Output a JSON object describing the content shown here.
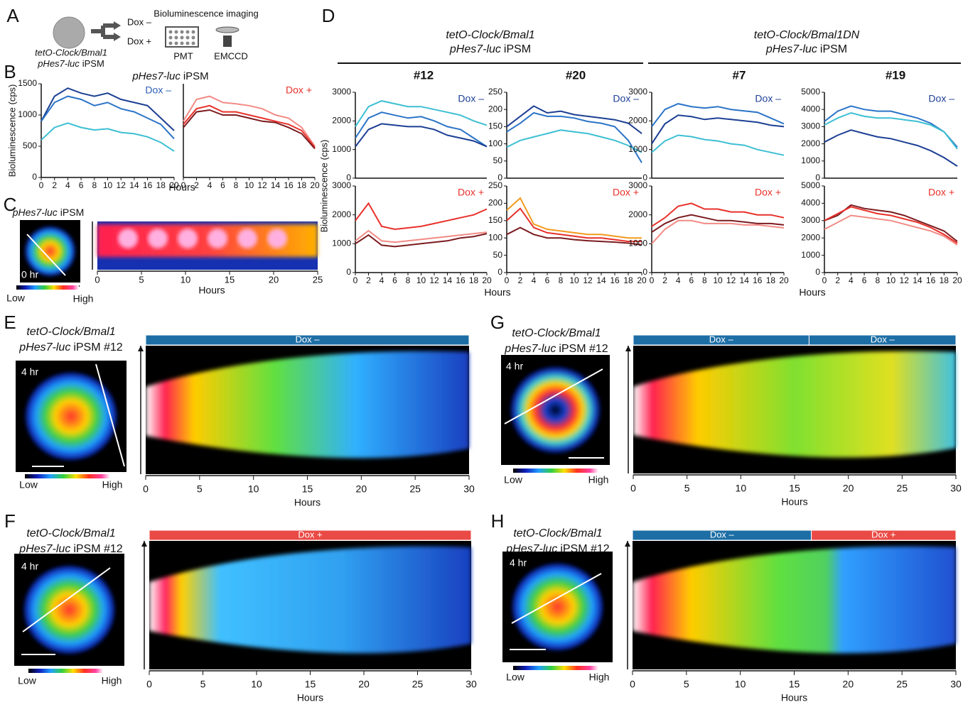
{
  "panel_labels": [
    "A",
    "B",
    "C",
    "D",
    "E",
    "F",
    "G",
    "H"
  ],
  "panel_a": {
    "sample": "tetO-Clock/Bmal1",
    "sample2": {
      "italic": "pHes7-luc",
      "plain": "iPSM"
    },
    "dox_minus": "Dox –",
    "dox_plus": "Dox +",
    "method": "Bioluminescence imaging",
    "pmt": "PMT",
    "emccd": "EMCCD"
  },
  "panel_b": {
    "title": {
      "italic": "pHes7-luc",
      "plain": "iPSM"
    },
    "ylabel": "Bioluminescence (cps)",
    "xlabel": "Hours"
  },
  "panel_c": {
    "title": {
      "italic": "pHes7-luc",
      "plain": "iPSM"
    },
    "time": "0 hr",
    "low": "Low",
    "high": "High",
    "xlim": [
      0,
      25
    ],
    "xticks": [
      0,
      5,
      10,
      15,
      20,
      25
    ],
    "xlabel": "Hours"
  },
  "panel_d": {
    "ylabel": "Bioluminescence (cps)",
    "groups": [
      {
        "line1": "tetO-Clock/Bmal1",
        "line2": {
          "italic": "pHes7-luc",
          "plain": "iPSM"
        },
        "clones": [
          "#12",
          "#20"
        ],
        "xlabel": "Hours"
      },
      {
        "line1": "tetO-Clock/Bmal1DN",
        "line2": {
          "italic": "pHes7-luc",
          "plain": "iPSM"
        },
        "clones": [
          "#7",
          "#19"
        ],
        "xlabel": "Hours"
      }
    ]
  },
  "panel_e": {
    "sample": "tetO-Clock/Bmal1",
    "sample2": {
      "italic": "pHes7-luc",
      "plain": "iPSM #12"
    },
    "time": "4 hr",
    "low": "Low",
    "high": "High",
    "bars": [
      {
        "text": "Dox –",
        "color": "#1d6ea5"
      }
    ],
    "xlim": [
      0,
      30
    ],
    "xticks": [
      0,
      5,
      10,
      15,
      20,
      25,
      30
    ],
    "xlabel": "Hours"
  },
  "panel_f": {
    "sample": "tetO-Clock/Bmal1",
    "sample2": {
      "italic": "pHes7-luc",
      "plain": "iPSM #12"
    },
    "time": "4 hr",
    "low": "Low",
    "high": "High",
    "bars": [
      {
        "text": "Dox +",
        "color": "#ea4a45"
      }
    ],
    "xlim": [
      0,
      30
    ],
    "xticks": [
      0,
      5,
      10,
      15,
      20,
      25,
      30
    ],
    "xlabel": "Hours"
  },
  "panel_g": {
    "sample": "tetO-Clock/Bmal1",
    "sample2": {
      "italic": "pHes7-luc",
      "plain": "iPSM #12"
    },
    "time": "4 hr",
    "low": "Low",
    "high": "High",
    "bars": [
      {
        "text": "Dox –",
        "color": "#1d6ea5"
      },
      {
        "text": "Dox –",
        "color": "#1d6ea5"
      }
    ],
    "xlim": [
      0,
      30
    ],
    "xticks": [
      0,
      5,
      10,
      15,
      20,
      25,
      30
    ],
    "xlabel": "Hours"
  },
  "panel_h": {
    "sample": "tetO-Clock/Bmal1",
    "sample2": {
      "italic": "pHes7-luc",
      "plain": "iPSM #12"
    },
    "time": "4 hr",
    "low": "Low",
    "high": "High",
    "bars": [
      {
        "text": "Dox –",
        "color": "#1d6ea5"
      },
      {
        "text": "Dox +",
        "color": "#ea4a45"
      }
    ],
    "xlim": [
      0,
      30
    ],
    "xticks": [
      0,
      5,
      10,
      15,
      20,
      25,
      30
    ],
    "xlabel": "Hours"
  },
  "chart_data": [
    {
      "type": "line",
      "x": [
        0,
        2,
        4,
        6,
        8,
        10,
        12,
        14,
        16,
        18,
        20
      ],
      "xlim": [
        0,
        20
      ],
      "xticks": [
        0,
        2,
        4,
        6,
        8,
        10,
        12,
        14,
        16,
        18,
        20
      ],
      "ylim": [
        0,
        1500
      ],
      "yticks": [
        0,
        500,
        1000,
        1500
      ],
      "annotation": {
        "text": "Dox –",
        "color": "#2b5fb4"
      },
      "series": [
        {
          "color": "#1c3f94",
          "values": [
            900,
            1300,
            1430,
            1350,
            1300,
            1350,
            1250,
            1200,
            1150,
            950,
            750
          ]
        },
        {
          "color": "#2b74c7",
          "values": [
            900,
            1200,
            1300,
            1250,
            1150,
            1200,
            1100,
            1050,
            950,
            850,
            620
          ]
        },
        {
          "color": "#3dbfd3",
          "values": [
            600,
            800,
            870,
            800,
            760,
            780,
            720,
            700,
            650,
            560,
            420
          ]
        }
      ]
    },
    {
      "type": "line",
      "x": [
        0,
        2,
        4,
        6,
        8,
        10,
        12,
        14,
        16,
        18,
        20
      ],
      "xlim": [
        0,
        20
      ],
      "xticks": [
        0,
        2,
        4,
        6,
        8,
        10,
        12,
        14,
        16,
        18,
        20
      ],
      "ylim": [
        0,
        1500
      ],
      "annotation": {
        "text": "Dox +",
        "color": "#e8302a"
      },
      "series": [
        {
          "color": "#f28b85",
          "values": [
            900,
            1250,
            1300,
            1200,
            1180,
            1150,
            1100,
            1000,
            950,
            800,
            500
          ]
        },
        {
          "color": "#e8302a",
          "values": [
            850,
            1100,
            1150,
            1050,
            1050,
            1000,
            950,
            900,
            850,
            750,
            480
          ]
        },
        {
          "color": "#7b1b1f",
          "values": [
            800,
            1050,
            1080,
            1000,
            1000,
            950,
            900,
            880,
            800,
            700,
            460
          ]
        }
      ]
    },
    {
      "type": "line",
      "x": [
        0,
        2,
        4,
        6,
        8,
        10,
        12,
        14,
        16,
        18,
        20
      ],
      "xlim": [
        0,
        20
      ],
      "ylim": [
        0,
        3000
      ],
      "yticks": [
        0,
        1000,
        2000,
        3000
      ],
      "annotation": {
        "text": "Dox –",
        "color": "#1c3f94"
      },
      "series": [
        {
          "color": "#3dbfd3",
          "values": [
            1800,
            2500,
            2700,
            2600,
            2500,
            2500,
            2400,
            2300,
            2200,
            2000,
            1850
          ]
        },
        {
          "color": "#2b74c7",
          "values": [
            1400,
            2100,
            2300,
            2200,
            2100,
            2150,
            2000,
            1800,
            1700,
            1400,
            1100
          ]
        },
        {
          "color": "#1c3f94",
          "values": [
            1100,
            1700,
            1900,
            1850,
            1800,
            1800,
            1700,
            1500,
            1400,
            1300,
            1100
          ]
        }
      ]
    },
    {
      "type": "line",
      "x": [
        0,
        2,
        4,
        6,
        8,
        10,
        12,
        14,
        16,
        18,
        20
      ],
      "xlim": [
        0,
        20
      ],
      "ylim": [
        0,
        250
      ],
      "yticks": [
        0,
        50,
        100,
        150,
        200,
        250
      ],
      "annotation": {
        "text": "Dox –",
        "color": "#1c3f94"
      },
      "series": [
        {
          "color": "#1c3f94",
          "values": [
            150,
            180,
            210,
            190,
            195,
            185,
            180,
            175,
            170,
            160,
            130
          ]
        },
        {
          "color": "#2b74c7",
          "values": [
            135,
            160,
            190,
            180,
            180,
            175,
            165,
            160,
            150,
            110,
            45
          ]
        },
        {
          "color": "#3dbfd3",
          "values": [
            90,
            110,
            120,
            130,
            140,
            135,
            130,
            120,
            110,
            95,
            75
          ]
        }
      ]
    },
    {
      "type": "line",
      "x": [
        0,
        2,
        4,
        6,
        8,
        10,
        12,
        14,
        16,
        18,
        20
      ],
      "xlim": [
        0,
        20
      ],
      "ylim": [
        0,
        3000
      ],
      "yticks": [
        0,
        1000,
        2000,
        3000
      ],
      "annotation": {
        "text": "Dox –",
        "color": "#1c3f94"
      },
      "series": [
        {
          "color": "#2b74c7",
          "values": [
            1800,
            2400,
            2600,
            2500,
            2450,
            2500,
            2400,
            2350,
            2300,
            2100,
            1900
          ]
        },
        {
          "color": "#1c3f94",
          "values": [
            1200,
            1900,
            2200,
            2150,
            2050,
            2100,
            2050,
            2000,
            1950,
            1850,
            1800
          ]
        },
        {
          "color": "#3dbfd3",
          "values": [
            900,
            1300,
            1500,
            1450,
            1350,
            1300,
            1200,
            1150,
            1000,
            900,
            800
          ]
        }
      ]
    },
    {
      "type": "line",
      "x": [
        0,
        2,
        4,
        6,
        8,
        10,
        12,
        14,
        16,
        18,
        20
      ],
      "xlim": [
        0,
        20
      ],
      "ylim": [
        0,
        5000
      ],
      "yticks": [
        0,
        1000,
        2000,
        3000,
        4000,
        5000
      ],
      "annotation": {
        "text": "Dox –",
        "color": "#1c3f94"
      },
      "series": [
        {
          "color": "#2b74c7",
          "values": [
            3300,
            3900,
            4200,
            4000,
            3900,
            3900,
            3700,
            3500,
            3200,
            2700,
            1800
          ]
        },
        {
          "color": "#3dbfd3",
          "values": [
            3100,
            3500,
            3800,
            3600,
            3500,
            3500,
            3400,
            3300,
            3100,
            2700,
            1700
          ]
        },
        {
          "color": "#1c3f94",
          "values": [
            2100,
            2500,
            2800,
            2600,
            2400,
            2300,
            2100,
            1900,
            1600,
            1200,
            700
          ]
        }
      ]
    },
    {
      "type": "line",
      "x": [
        0,
        2,
        4,
        6,
        8,
        10,
        12,
        14,
        16,
        18,
        20
      ],
      "xlim": [
        0,
        20
      ],
      "xticks": [
        0,
        2,
        4,
        6,
        8,
        10,
        12,
        14,
        16,
        18,
        20
      ],
      "ylim": [
        0,
        3000
      ],
      "yticks": [
        0,
        1000,
        2000,
        3000
      ],
      "annotation": {
        "text": "Dox +",
        "color": "#e8302a"
      },
      "series": [
        {
          "color": "#e8302a",
          "values": [
            1800,
            2400,
            1600,
            1500,
            1550,
            1600,
            1700,
            1800,
            1900,
            2000,
            2200
          ]
        },
        {
          "color": "#f28b85",
          "values": [
            1100,
            1450,
            1100,
            1050,
            1100,
            1150,
            1200,
            1250,
            1300,
            1350,
            1400
          ]
        },
        {
          "color": "#7b1b1f",
          "values": [
            1000,
            1300,
            950,
            900,
            950,
            1000,
            1050,
            1100,
            1200,
            1250,
            1350
          ]
        }
      ]
    },
    {
      "type": "line",
      "x": [
        0,
        2,
        4,
        6,
        8,
        10,
        12,
        14,
        16,
        18,
        20
      ],
      "xlim": [
        0,
        20
      ],
      "xticks": [
        0,
        2,
        4,
        6,
        8,
        10,
        12,
        14,
        16,
        18,
        20
      ],
      "ylim": [
        0,
        250
      ],
      "yticks": [
        0,
        50,
        100,
        150,
        200,
        250
      ],
      "annotation": {
        "text": "Dox +",
        "color": "#e8302a"
      },
      "series": [
        {
          "color": "#f39a1e",
          "values": [
            180,
            215,
            140,
            125,
            120,
            115,
            110,
            110,
            105,
            100,
            100
          ]
        },
        {
          "color": "#e8302a",
          "values": [
            150,
            185,
            130,
            115,
            110,
            105,
            100,
            100,
            95,
            90,
            90
          ]
        },
        {
          "color": "#7b1b1f",
          "values": [
            110,
            130,
            110,
            100,
            100,
            95,
            92,
            90,
            88,
            85,
            80
          ]
        }
      ]
    },
    {
      "type": "line",
      "x": [
        0,
        2,
        4,
        6,
        8,
        10,
        12,
        14,
        16,
        18,
        20
      ],
      "xlim": [
        0,
        20
      ],
      "xticks": [
        0,
        2,
        4,
        6,
        8,
        10,
        12,
        14,
        16,
        18,
        20
      ],
      "ylim": [
        0,
        3000
      ],
      "yticks": [
        0,
        1000,
        2000,
        3000
      ],
      "annotation": {
        "text": "Dox +",
        "color": "#e8302a"
      },
      "series": [
        {
          "color": "#e8302a",
          "values": [
            1600,
            1900,
            2300,
            2400,
            2200,
            2200,
            2100,
            2100,
            2000,
            2000,
            1900
          ]
        },
        {
          "color": "#7b1b1f",
          "values": [
            1400,
            1700,
            1900,
            2000,
            1900,
            1800,
            1800,
            1750,
            1700,
            1700,
            1650
          ]
        },
        {
          "color": "#f28b85",
          "values": [
            1000,
            1500,
            1800,
            1800,
            1700,
            1700,
            1700,
            1650,
            1650,
            1600,
            1550
          ]
        }
      ]
    },
    {
      "type": "line",
      "x": [
        0,
        2,
        4,
        6,
        8,
        10,
        12,
        14,
        16,
        18,
        20
      ],
      "xlim": [
        0,
        20
      ],
      "xticks": [
        0,
        2,
        4,
        6,
        8,
        10,
        12,
        14,
        16,
        18,
        20
      ],
      "ylim": [
        0,
        5000
      ],
      "yticks": [
        0,
        1000,
        2000,
        3000,
        4000,
        5000
      ],
      "annotation": {
        "text": "Dox +",
        "color": "#e8302a"
      },
      "series": [
        {
          "color": "#7b1b1f",
          "values": [
            3000,
            3300,
            3900,
            3700,
            3600,
            3500,
            3300,
            3000,
            2700,
            2400,
            1800
          ]
        },
        {
          "color": "#e8302a",
          "values": [
            3000,
            3400,
            3800,
            3600,
            3400,
            3300,
            3100,
            2900,
            2600,
            2200,
            1700
          ]
        },
        {
          "color": "#f28b85",
          "values": [
            2500,
            2900,
            3300,
            3200,
            3100,
            3000,
            2800,
            2600,
            2400,
            2100,
            1600
          ]
        }
      ]
    }
  ]
}
